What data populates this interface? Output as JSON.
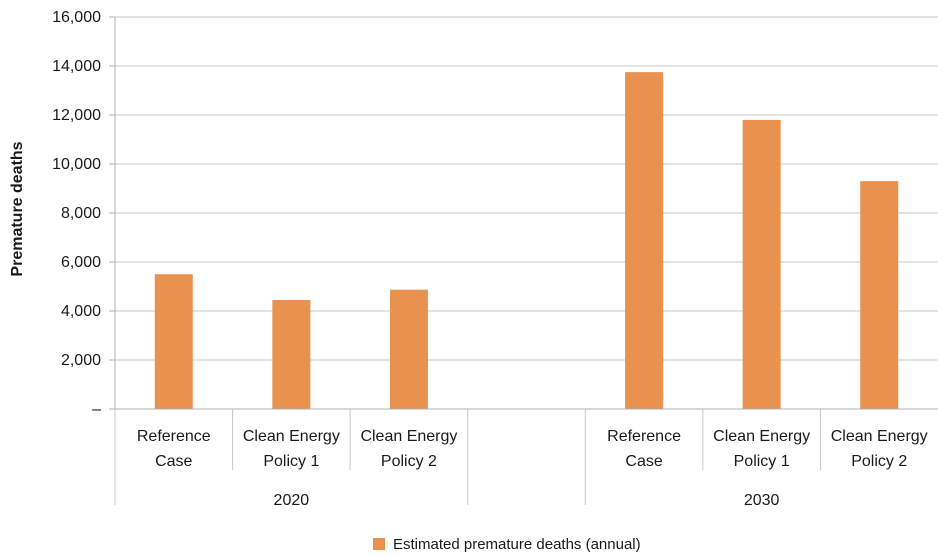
{
  "chart_data": {
    "type": "bar",
    "ylabel": "Premature deaths",
    "ylim": [
      0,
      16000
    ],
    "yticks": [
      {
        "value": 0,
        "label": "–"
      },
      {
        "value": 2000,
        "label": "2,000"
      },
      {
        "value": 4000,
        "label": "4,000"
      },
      {
        "value": 6000,
        "label": "6,000"
      },
      {
        "value": 8000,
        "label": "8,000"
      },
      {
        "value": 10000,
        "label": "10,000"
      },
      {
        "value": 12000,
        "label": "12,000"
      },
      {
        "value": 14000,
        "label": "14,000"
      },
      {
        "value": 16000,
        "label": "16,000"
      }
    ],
    "grid": true,
    "legend_position": "bottom",
    "series": [
      {
        "name": "Estimated premature deaths (annual)",
        "color": "#E9914E"
      }
    ],
    "categories": [
      {
        "line1": "Reference",
        "line2": "Case",
        "group": "2020",
        "value": 5500
      },
      {
        "line1": "Clean Energy",
        "line2": "Policy 1",
        "group": "2020",
        "value": 4450
      },
      {
        "line1": "Clean Energy",
        "line2": "Policy 2",
        "group": "2020",
        "value": 4870
      },
      {
        "line1": "",
        "line2": "",
        "group": "",
        "value": null
      },
      {
        "line1": "Reference",
        "line2": "Case",
        "group": "2030",
        "value": 13750
      },
      {
        "line1": "Clean Energy",
        "line2": "Policy 1",
        "group": "2030",
        "value": 11800
      },
      {
        "line1": "Clean Energy",
        "line2": "Policy 2",
        "group": "2030",
        "value": 9300
      }
    ],
    "groups": [
      "2020",
      "2030"
    ]
  }
}
